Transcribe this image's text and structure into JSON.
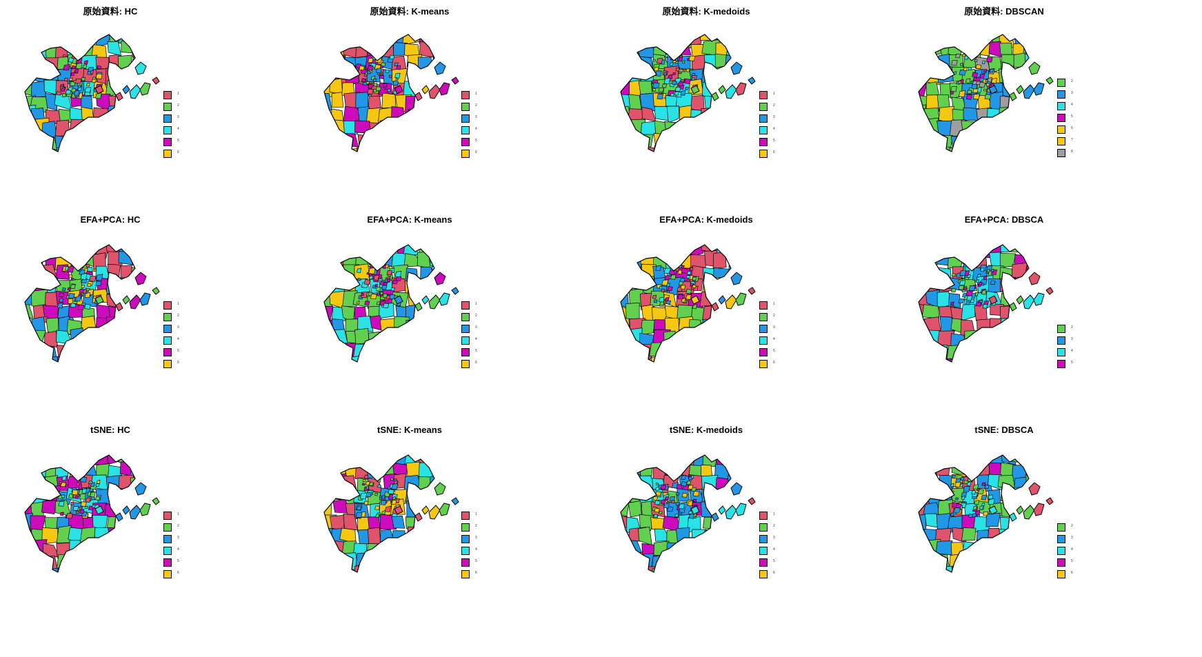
{
  "palette": {
    "1": "#DF536B",
    "2": "#61D04F",
    "3": "#2297E6",
    "4": "#28E2E5",
    "5": "#CD0BBC",
    "6": "#F5C710",
    "7": "#F5C710",
    "8": "#9E9E9E"
  },
  "panels": [
    {
      "title": "原始資料: HC",
      "legend": [
        "1",
        "2",
        "3",
        "4",
        "5",
        "6"
      ],
      "dominant": [
        "3",
        "2",
        "1",
        "4"
      ]
    },
    {
      "title": "原始資料: K-means",
      "legend": [
        "1",
        "2",
        "3",
        "4",
        "5",
        "6"
      ],
      "dominant": [
        "6",
        "5",
        "3",
        "1"
      ]
    },
    {
      "title": "原始資料: K-medoids",
      "legend": [
        "1",
        "2",
        "3",
        "4",
        "5",
        "6"
      ],
      "dominant": [
        "2",
        "3",
        "1",
        "4"
      ]
    },
    {
      "title": "原始資料: DBSCAN",
      "legend": [
        "2",
        "3",
        "4",
        "5",
        "6",
        "7",
        "8"
      ],
      "dominant": [
        "2",
        "2",
        "2",
        "3"
      ]
    },
    {
      "title": "EFA+PCA: HC",
      "legend": [
        "1",
        "2",
        "3",
        "4",
        "5",
        "6"
      ],
      "dominant": [
        "3",
        "2",
        "1",
        "5"
      ]
    },
    {
      "title": "EFA+PCA: K-means",
      "legend": [
        "1",
        "2",
        "3",
        "4",
        "5",
        "6"
      ],
      "dominant": [
        "3",
        "4",
        "5",
        "2"
      ]
    },
    {
      "title": "EFA+PCA: K-medoids",
      "legend": [
        "1",
        "2",
        "3",
        "4",
        "5",
        "6"
      ],
      "dominant": [
        "1",
        "3",
        "2",
        "6"
      ]
    },
    {
      "title": "EFA+PCA: DBSCA",
      "legend": [
        "2",
        "3",
        "4",
        "5"
      ],
      "dominant": [
        "1",
        "2",
        "1",
        "4"
      ]
    },
    {
      "title": "tSNE: HC",
      "legend": [
        "1",
        "2",
        "3",
        "4",
        "5",
        "6"
      ],
      "dominant": [
        "2",
        "4",
        "3",
        "5"
      ]
    },
    {
      "title": "tSNE: K-means",
      "legend": [
        "1",
        "2",
        "3",
        "4",
        "5",
        "6"
      ],
      "dominant": [
        "3",
        "2",
        "6",
        "1"
      ]
    },
    {
      "title": "tSNE: K-medoids",
      "legend": [
        "1",
        "2",
        "3",
        "4",
        "5",
        "6"
      ],
      "dominant": [
        "3",
        "2",
        "4",
        "1"
      ]
    },
    {
      "title": "tSNE: DBSCA",
      "legend": [
        "2",
        "3",
        "4",
        "5",
        "6"
      ],
      "dominant": [
        "3",
        "4",
        "2",
        "1"
      ]
    }
  ]
}
